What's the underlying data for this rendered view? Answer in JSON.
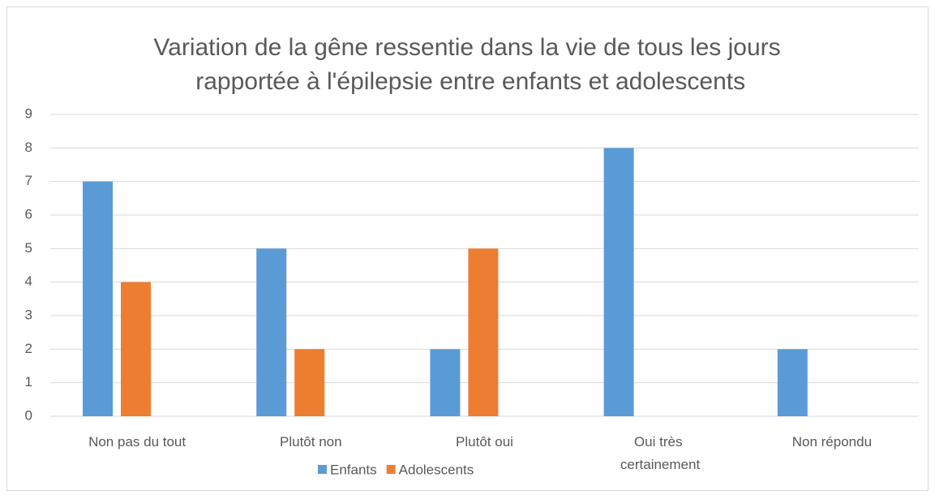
{
  "chart_data": {
    "type": "bar",
    "title": "Variation de la gêne ressentie dans la vie de tous les jours rapportée à l'épilepsie entre enfants et adolescents",
    "categories": [
      "Non pas du tout",
      "Plutôt non",
      "Plutôt oui",
      "Oui très certainement",
      "Non répondu"
    ],
    "series": [
      {
        "name": "Enfants",
        "color": "#5b9bd5",
        "values": [
          7,
          5,
          2,
          8,
          2
        ]
      },
      {
        "name": "Adolescents",
        "color": "#ed7d31",
        "values": [
          4,
          2,
          5,
          0,
          0
        ]
      }
    ],
    "ylim": [
      0,
      9
    ],
    "yticks": [
      0,
      1,
      2,
      3,
      4,
      5,
      6,
      7,
      8,
      9
    ],
    "grid": true,
    "legend": "bottom"
  }
}
